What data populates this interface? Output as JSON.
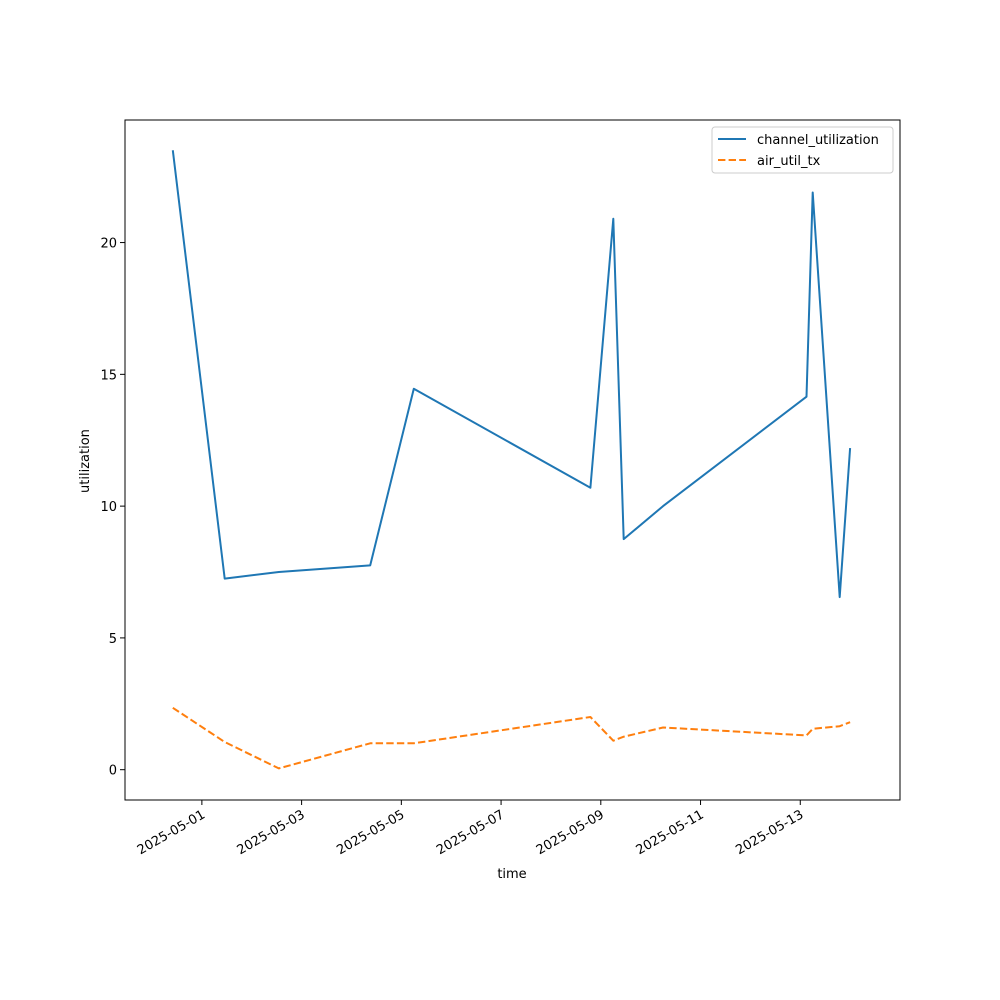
{
  "chart_data": {
    "type": "line",
    "title": "",
    "xlabel": "time",
    "ylabel": "utilization",
    "xlim": [
      "2025-04-29T11:00",
      "2025-05-15T00:00"
    ],
    "ylim": [
      -1.15,
      24.65
    ],
    "x_ticks": [
      "2025-05-01",
      "2025-05-03",
      "2025-05-05",
      "2025-05-07",
      "2025-05-09",
      "2025-05-11",
      "2025-05-13"
    ],
    "y_ticks": [
      0,
      5,
      10,
      15,
      20
    ],
    "grid": false,
    "legend_position": "top-right",
    "series": [
      {
        "name": "channel_utilization",
        "color": "#1f77b4",
        "dash": "solid",
        "points": [
          {
            "x": "2025-04-30T10:00",
            "y": 23.5
          },
          {
            "x": "2025-05-01T11:00",
            "y": 7.25
          },
          {
            "x": "2025-05-02T13:00",
            "y": 7.5
          },
          {
            "x": "2025-05-04T09:00",
            "y": 7.75
          },
          {
            "x": "2025-05-05T06:00",
            "y": 14.45
          },
          {
            "x": "2025-05-08T19:00",
            "y": 10.7
          },
          {
            "x": "2025-05-09T06:00",
            "y": 20.9
          },
          {
            "x": "2025-05-09T11:00",
            "y": 8.75
          },
          {
            "x": "2025-05-10T06:00",
            "y": 10.0
          },
          {
            "x": "2025-05-13T03:00",
            "y": 14.15
          },
          {
            "x": "2025-05-13T06:00",
            "y": 21.9
          },
          {
            "x": "2025-05-13T19:00",
            "y": 6.55
          },
          {
            "x": "2025-05-14T00:00",
            "y": 12.2
          }
        ]
      },
      {
        "name": "air_util_tx",
        "color": "#ff7f0e",
        "dash": "dashed",
        "points": [
          {
            "x": "2025-04-30T10:00",
            "y": 2.35
          },
          {
            "x": "2025-05-01T11:00",
            "y": 1.05
          },
          {
            "x": "2025-05-02T13:00",
            "y": 0.05
          },
          {
            "x": "2025-05-04T09:00",
            "y": 1.0
          },
          {
            "x": "2025-05-05T06:00",
            "y": 1.0
          },
          {
            "x": "2025-05-08T19:00",
            "y": 2.0
          },
          {
            "x": "2025-05-09T06:00",
            "y": 1.1
          },
          {
            "x": "2025-05-09T11:00",
            "y": 1.25
          },
          {
            "x": "2025-05-10T06:00",
            "y": 1.6
          },
          {
            "x": "2025-05-13T03:00",
            "y": 1.3
          },
          {
            "x": "2025-05-13T06:00",
            "y": 1.55
          },
          {
            "x": "2025-05-13T19:00",
            "y": 1.65
          },
          {
            "x": "2025-05-14T00:00",
            "y": 1.8
          }
        ]
      }
    ]
  }
}
